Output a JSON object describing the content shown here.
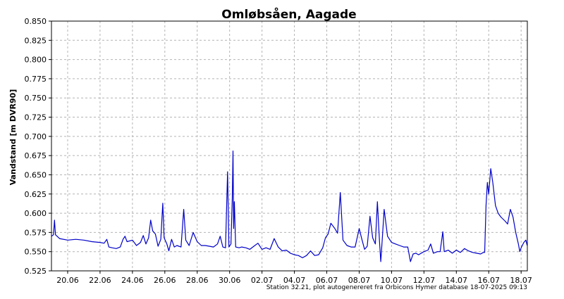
{
  "chart_data": {
    "type": "line",
    "title": "Omløbsåen, Aagade",
    "ylabel": "Vandstand [m DVR90]",
    "xlabel": "",
    "ylim": [
      0.525,
      0.85
    ],
    "yticks": [
      "0.525",
      "0.550",
      "0.575",
      "0.600",
      "0.625",
      "0.650",
      "0.675",
      "0.700",
      "0.725",
      "0.750",
      "0.775",
      "0.800",
      "0.825",
      "0.850"
    ],
    "xlim": [
      "2025-06-19",
      "2025-07-18T09:13"
    ],
    "xticks": [
      {
        "date": "2025-06-20",
        "label": "20.06"
      },
      {
        "date": "2025-06-22",
        "label": "22.06"
      },
      {
        "date": "2025-06-24",
        "label": "24.06"
      },
      {
        "date": "2025-06-26",
        "label": "26.06"
      },
      {
        "date": "2025-06-28",
        "label": "28.06"
      },
      {
        "date": "2025-06-30",
        "label": "30.06"
      },
      {
        "date": "2025-07-02",
        "label": "02.07"
      },
      {
        "date": "2025-07-04",
        "label": "04.07"
      },
      {
        "date": "2025-07-06",
        "label": "06.07"
      },
      {
        "date": "2025-07-08",
        "label": "08.07"
      },
      {
        "date": "2025-07-10",
        "label": "10.07"
      },
      {
        "date": "2025-07-12",
        "label": "12.07"
      },
      {
        "date": "2025-07-14",
        "label": "14.07"
      },
      {
        "date": "2025-07-16",
        "label": "16.07"
      },
      {
        "date": "2025-07-18",
        "label": "18.07"
      }
    ],
    "grid": true,
    "series": [
      {
        "color": "#0000c8",
        "points": [
          [
            "2025-06-19T00:00",
            0.57
          ],
          [
            "2025-06-19T03:00",
            0.572
          ],
          [
            "2025-06-19T04:30",
            0.591
          ],
          [
            "2025-06-19T06:00",
            0.572
          ],
          [
            "2025-06-19T12:00",
            0.567
          ],
          [
            "2025-06-20T00:00",
            0.565
          ],
          [
            "2025-06-20T12:00",
            0.566
          ],
          [
            "2025-06-21T00:00",
            0.565
          ],
          [
            "2025-06-21T12:00",
            0.563
          ],
          [
            "2025-06-22T00:00",
            0.562
          ],
          [
            "2025-06-22T06:00",
            0.561
          ],
          [
            "2025-06-22T10:00",
            0.566
          ],
          [
            "2025-06-22T13:00",
            0.556
          ],
          [
            "2025-06-22T18:00",
            0.555
          ],
          [
            "2025-06-23T00:00",
            0.554
          ],
          [
            "2025-06-23T06:00",
            0.556
          ],
          [
            "2025-06-23T10:00",
            0.566
          ],
          [
            "2025-06-23T13:00",
            0.57
          ],
          [
            "2025-06-23T16:00",
            0.563
          ],
          [
            "2025-06-24T00:00",
            0.565
          ],
          [
            "2025-06-24T06:00",
            0.558
          ],
          [
            "2025-06-24T12:00",
            0.562
          ],
          [
            "2025-06-24T16:00",
            0.571
          ],
          [
            "2025-06-24T20:00",
            0.56
          ],
          [
            "2025-06-25T00:00",
            0.568
          ],
          [
            "2025-06-25T03:00",
            0.591
          ],
          [
            "2025-06-25T06:00",
            0.577
          ],
          [
            "2025-06-25T10:00",
            0.573
          ],
          [
            "2025-06-25T14:00",
            0.557
          ],
          [
            "2025-06-25T18:00",
            0.566
          ],
          [
            "2025-06-25T21:00",
            0.613
          ],
          [
            "2025-06-25T23:00",
            0.568
          ],
          [
            "2025-06-26T03:00",
            0.56
          ],
          [
            "2025-06-26T06:00",
            0.551
          ],
          [
            "2025-06-26T10:00",
            0.566
          ],
          [
            "2025-06-26T14:00",
            0.556
          ],
          [
            "2025-06-26T18:00",
            0.558
          ],
          [
            "2025-06-27T00:00",
            0.556
          ],
          [
            "2025-06-27T04:00",
            0.605
          ],
          [
            "2025-06-27T07:00",
            0.565
          ],
          [
            "2025-06-27T12:00",
            0.558
          ],
          [
            "2025-06-27T18:00",
            0.575
          ],
          [
            "2025-06-28T00:00",
            0.563
          ],
          [
            "2025-06-28T06:00",
            0.558
          ],
          [
            "2025-06-28T12:00",
            0.558
          ],
          [
            "2025-06-28T18:00",
            0.557
          ],
          [
            "2025-06-29T00:00",
            0.556
          ],
          [
            "2025-06-29T06:00",
            0.56
          ],
          [
            "2025-06-29T10:00",
            0.57
          ],
          [
            "2025-06-29T14:00",
            0.556
          ],
          [
            "2025-06-29T18:00",
            0.555
          ],
          [
            "2025-06-29T21:00",
            0.654
          ],
          [
            "2025-06-29T23:00",
            0.556
          ],
          [
            "2025-06-30T02:00",
            0.56
          ],
          [
            "2025-06-30T04:00",
            0.62
          ],
          [
            "2025-06-30T05:00",
            0.681
          ],
          [
            "2025-06-30T06:00",
            0.58
          ],
          [
            "2025-06-30T07:00",
            0.615
          ],
          [
            "2025-06-30T09:00",
            0.556
          ],
          [
            "2025-06-30T14:00",
            0.555
          ],
          [
            "2025-06-30T18:00",
            0.556
          ],
          [
            "2025-07-01T00:00",
            0.555
          ],
          [
            "2025-07-01T06:00",
            0.553
          ],
          [
            "2025-07-01T12:00",
            0.557
          ],
          [
            "2025-07-01T18:00",
            0.561
          ],
          [
            "2025-07-02T00:00",
            0.553
          ],
          [
            "2025-07-02T06:00",
            0.555
          ],
          [
            "2025-07-02T12:00",
            0.553
          ],
          [
            "2025-07-02T18:00",
            0.567
          ],
          [
            "2025-07-03T00:00",
            0.556
          ],
          [
            "2025-07-03T06:00",
            0.551
          ],
          [
            "2025-07-03T12:00",
            0.552
          ],
          [
            "2025-07-03T18:00",
            0.548
          ],
          [
            "2025-07-04T00:00",
            0.546
          ],
          [
            "2025-07-04T06:00",
            0.545
          ],
          [
            "2025-07-04T12:00",
            0.542
          ],
          [
            "2025-07-04T18:00",
            0.545
          ],
          [
            "2025-07-05T00:00",
            0.551
          ],
          [
            "2025-07-05T06:00",
            0.545
          ],
          [
            "2025-07-05T12:00",
            0.546
          ],
          [
            "2025-07-05T18:00",
            0.555
          ],
          [
            "2025-07-05T22:00",
            0.568
          ],
          [
            "2025-07-06T02:00",
            0.573
          ],
          [
            "2025-07-06T06:00",
            0.587
          ],
          [
            "2025-07-06T12:00",
            0.58
          ],
          [
            "2025-07-06T16:00",
            0.574
          ],
          [
            "2025-07-06T20:00",
            0.627
          ],
          [
            "2025-07-07T00:00",
            0.565
          ],
          [
            "2025-07-07T06:00",
            0.558
          ],
          [
            "2025-07-07T12:00",
            0.556
          ],
          [
            "2025-07-07T18:00",
            0.556
          ],
          [
            "2025-07-08T00:00",
            0.58
          ],
          [
            "2025-07-08T04:00",
            0.566
          ],
          [
            "2025-07-08T08:00",
            0.553
          ],
          [
            "2025-07-08T12:00",
            0.557
          ],
          [
            "2025-07-08T16:00",
            0.596
          ],
          [
            "2025-07-08T20:00",
            0.568
          ],
          [
            "2025-07-09T00:00",
            0.56
          ],
          [
            "2025-07-09T03:00",
            0.615
          ],
          [
            "2025-07-09T06:00",
            0.565
          ],
          [
            "2025-07-09T08:00",
            0.537
          ],
          [
            "2025-07-09T10:00",
            0.563
          ],
          [
            "2025-07-09T13:00",
            0.605
          ],
          [
            "2025-07-09T18:00",
            0.57
          ],
          [
            "2025-07-10T00:00",
            0.562
          ],
          [
            "2025-07-10T06:00",
            0.56
          ],
          [
            "2025-07-10T12:00",
            0.558
          ],
          [
            "2025-07-10T18:00",
            0.556
          ],
          [
            "2025-07-11T00:00",
            0.556
          ],
          [
            "2025-07-11T04:00",
            0.537
          ],
          [
            "2025-07-11T08:00",
            0.547
          ],
          [
            "2025-07-11T12:00",
            0.548
          ],
          [
            "2025-07-11T16:00",
            0.546
          ],
          [
            "2025-07-12T00:00",
            0.55
          ],
          [
            "2025-07-12T06:00",
            0.552
          ],
          [
            "2025-07-12T10:00",
            0.56
          ],
          [
            "2025-07-12T14:00",
            0.548
          ],
          [
            "2025-07-12T20:00",
            0.55
          ],
          [
            "2025-07-13T00:00",
            0.55
          ],
          [
            "2025-07-13T04:00",
            0.576
          ],
          [
            "2025-07-13T06:00",
            0.55
          ],
          [
            "2025-07-13T12:00",
            0.552
          ],
          [
            "2025-07-13T18:00",
            0.548
          ],
          [
            "2025-07-14T00:00",
            0.552
          ],
          [
            "2025-07-14T06:00",
            0.549
          ],
          [
            "2025-07-14T12:00",
            0.554
          ],
          [
            "2025-07-14T18:00",
            0.551
          ],
          [
            "2025-07-15T00:00",
            0.549
          ],
          [
            "2025-07-15T06:00",
            0.548
          ],
          [
            "2025-07-15T12:00",
            0.547
          ],
          [
            "2025-07-15T16:00",
            0.549
          ],
          [
            "2025-07-15T18:00",
            0.549
          ],
          [
            "2025-07-15T20:00",
            0.61
          ],
          [
            "2025-07-15T22:00",
            0.64
          ],
          [
            "2025-07-16T00:00",
            0.625
          ],
          [
            "2025-07-16T03:00",
            0.658
          ],
          [
            "2025-07-16T06:00",
            0.64
          ],
          [
            "2025-07-16T10:00",
            0.61
          ],
          [
            "2025-07-16T14:00",
            0.6
          ],
          [
            "2025-07-16T18:00",
            0.595
          ],
          [
            "2025-07-17T00:00",
            0.59
          ],
          [
            "2025-07-17T04:00",
            0.586
          ],
          [
            "2025-07-17T08:00",
            0.605
          ],
          [
            "2025-07-17T12:00",
            0.595
          ],
          [
            "2025-07-17T16:00",
            0.575
          ],
          [
            "2025-07-17T20:00",
            0.56
          ],
          [
            "2025-07-17T22:00",
            0.55
          ],
          [
            "2025-07-18T00:00",
            0.555
          ],
          [
            "2025-07-18T04:00",
            0.562
          ],
          [
            "2025-07-18T07:00",
            0.565
          ],
          [
            "2025-07-18T09:00",
            0.558
          ]
        ]
      }
    ],
    "footer": "Station 32.21, plot autogenereret fra Orbicons Hymer database 18-07-2025 09:13"
  }
}
